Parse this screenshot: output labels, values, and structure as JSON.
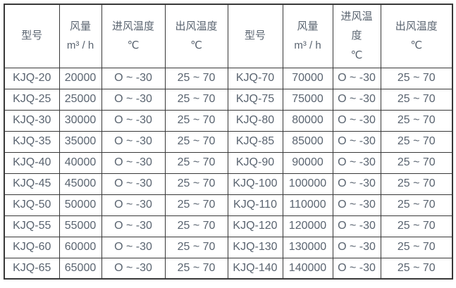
{
  "table": {
    "header": [
      {
        "lines": [
          "型号"
        ]
      },
      {
        "lines": [
          "风量",
          "m³ / h"
        ]
      },
      {
        "lines": [
          "进风温度",
          "℃"
        ]
      },
      {
        "lines": [
          "出风温度",
          "℃"
        ]
      },
      {
        "lines": [
          "型号"
        ]
      },
      {
        "lines": [
          "风量",
          "m³ / h"
        ]
      },
      {
        "lines": [
          "进风温",
          "度",
          "℃"
        ]
      },
      {
        "lines": [
          "出风温度",
          "℃"
        ]
      }
    ],
    "column_semantics": [
      "model",
      "airflow",
      "inlet-temp",
      "outlet-temp",
      "model",
      "airflow",
      "inlet-temp",
      "outlet-temp"
    ],
    "rows": [
      [
        "KJQ-20",
        "20000",
        "O ~ -30",
        "25 ~ 70",
        "KJQ-70",
        "70000",
        "O ~ -30",
        "25 ~ 70"
      ],
      [
        "KJQ-25",
        "25000",
        "O ~ -30",
        "25 ~ 70",
        "KJQ-75",
        "75000",
        "O ~ -30",
        "25 ~ 70"
      ],
      [
        "KJQ-30",
        "30000",
        "O ~ -30",
        "25 ~ 70",
        "KJQ-80",
        "80000",
        "O ~ -30",
        "25 ~ 70"
      ],
      [
        "KJQ-35",
        "35000",
        "O ~ -30",
        "25 ~ 70",
        "KJQ-85",
        "85000",
        "O ~ -30",
        "25 ~ 70"
      ],
      [
        "KJQ-40",
        "40000",
        "O ~ -30",
        "25 ~ 70",
        "KJQ-90",
        "90000",
        "O ~ -30",
        "25 ~ 70"
      ],
      [
        "KJQ-45",
        "45000",
        "O ~ -30",
        "25 ~ 70",
        "KJQ-100",
        "100000",
        "O ~ -30",
        "25 ~ 70"
      ],
      [
        "KJQ-50",
        "50000",
        "O ~ -30",
        "25 ~ 70",
        "KJQ-110",
        "110000",
        "O ~ -30",
        "25 ~ 70"
      ],
      [
        "KJQ-55",
        "55000",
        "O ~ -30",
        "25 ~ 70",
        "KJQ-120",
        "120000",
        "O ~ -30",
        "25 ~ 70"
      ],
      [
        "KJQ-60",
        "60000",
        "O ~ -30",
        "25 ~ 70",
        "KJQ-130",
        "130000",
        "O ~ -30",
        "25 ~ 70"
      ],
      [
        "KJQ-65",
        "65000",
        "O ~ -30",
        "25 ~ 70",
        "KJQ-140",
        "140000",
        "O ~ -30",
        "25 ~ 70"
      ]
    ],
    "colors": {
      "border": "#383838",
      "text": "#5a6470",
      "background": "#ffffff"
    }
  }
}
